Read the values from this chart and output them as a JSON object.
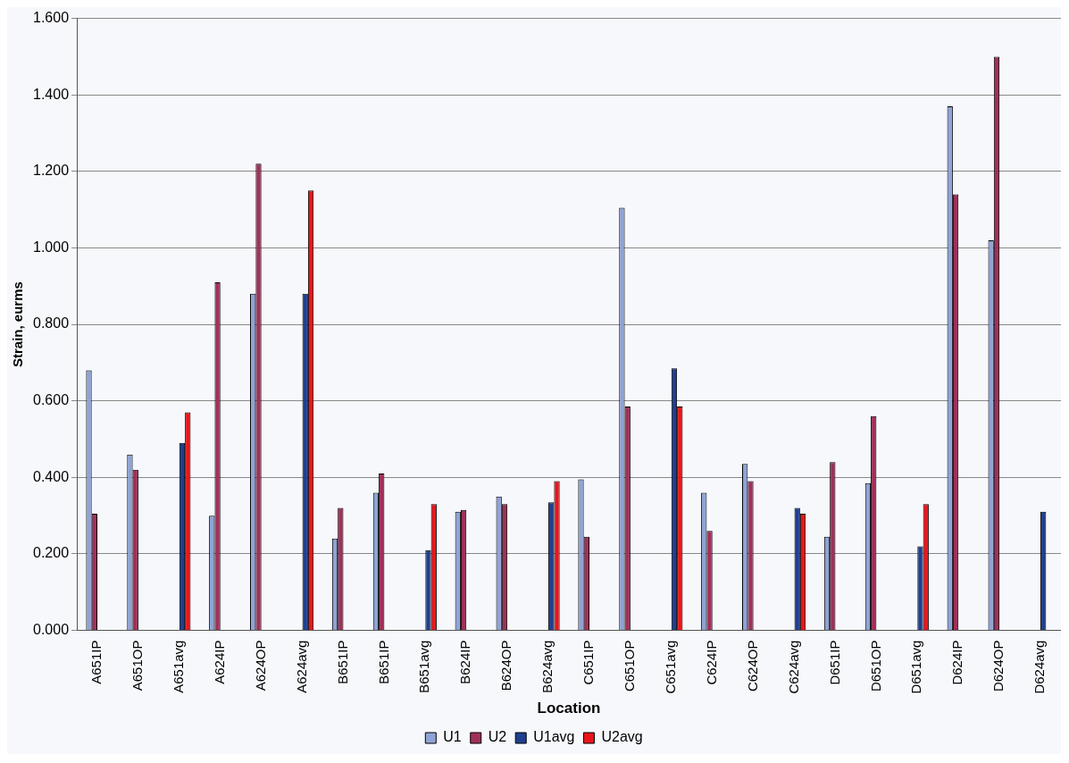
{
  "chart_data": {
    "type": "bar",
    "xlabel": "Location",
    "ylabel": "Strain, eurms",
    "categories": [
      "A651IP",
      "A651OP",
      "A651avg",
      "A624IP",
      "A624OP",
      "A624avg",
      "B651IP",
      "B651IP",
      "B651avg",
      "B624IP",
      "B624OP",
      "B624avg",
      "C651IP",
      "C651OP",
      "C651avg",
      "C624IP",
      "C624OP",
      "C624avg",
      "D651IP",
      "D651OP",
      "D651avg",
      "D624IP",
      "D624OP",
      "D624avg"
    ],
    "series": [
      {
        "name": "U1",
        "color": "#8fa3d6",
        "values": [
          0.68,
          0.46,
          null,
          0.3,
          0.88,
          null,
          0.24,
          0.36,
          null,
          0.31,
          0.35,
          null,
          0.395,
          1.105,
          null,
          0.36,
          0.435,
          null,
          0.245,
          0.385,
          null,
          1.37,
          1.02,
          null
        ]
      },
      {
        "name": "U2",
        "color": "#a0305a",
        "values": [
          0.305,
          0.42,
          null,
          0.91,
          1.22,
          null,
          0.32,
          0.41,
          null,
          0.315,
          0.33,
          null,
          0.245,
          0.585,
          null,
          0.26,
          0.39,
          null,
          0.44,
          0.56,
          null,
          1.14,
          1.5,
          null
        ]
      },
      {
        "name": "U1avg",
        "color": "#1f3f8f",
        "values": [
          null,
          null,
          0.49,
          null,
          null,
          0.88,
          null,
          null,
          0.21,
          null,
          null,
          0.335,
          null,
          null,
          0.685,
          null,
          null,
          0.32,
          null,
          null,
          0.22,
          null,
          null,
          0.31
        ]
      },
      {
        "name": "U2avg",
        "color": "#e8161c",
        "values": [
          null,
          null,
          0.57,
          null,
          null,
          1.15,
          null,
          null,
          0.33,
          null,
          null,
          0.39,
          null,
          null,
          0.585,
          null,
          null,
          0.305,
          null,
          null,
          0.33,
          null,
          null,
          null
        ]
      }
    ],
    "ylim": [
      0,
      1.6
    ],
    "yticks": [
      {
        "value": 0,
        "label": "0.000"
      },
      {
        "value": 0.2,
        "label": "0.200"
      },
      {
        "value": 0.4,
        "label": "0.400"
      },
      {
        "value": 0.6,
        "label": "0.600"
      },
      {
        "value": 0.8,
        "label": "0.800"
      },
      {
        "value": 1,
        "label": "1.000"
      },
      {
        "value": 1.2,
        "label": "1.200"
      },
      {
        "value": 1.4,
        "label": "1.400"
      },
      {
        "value": 1.6,
        "label": "1.600"
      }
    ],
    "grid": "y",
    "legend": "bottom"
  }
}
